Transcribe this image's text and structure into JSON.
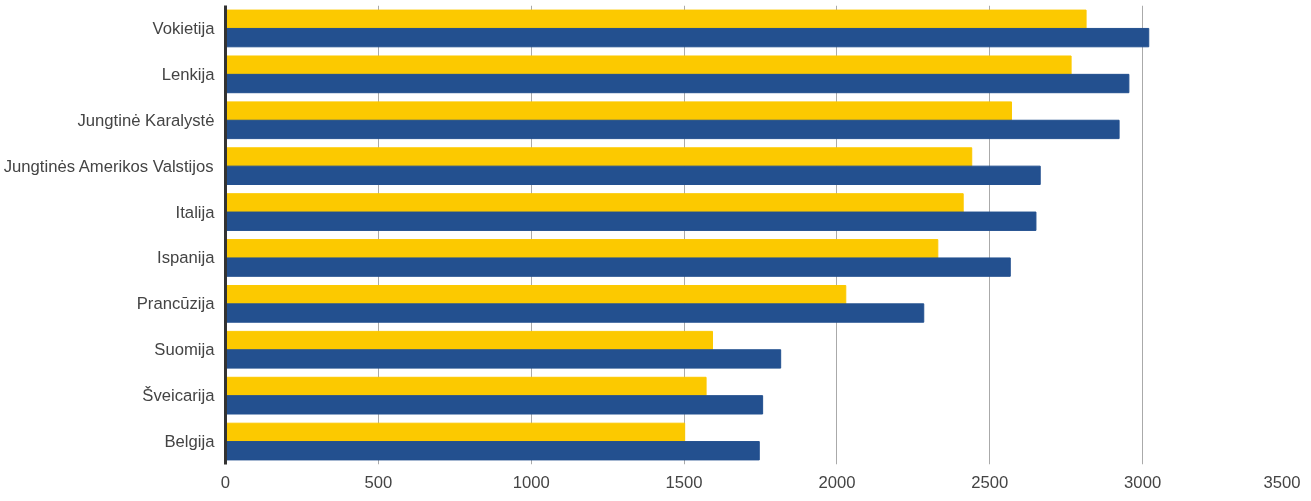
{
  "chart_data": {
    "type": "bar",
    "orientation": "horizontal",
    "categories": [
      "Vokietija",
      "Lenkija",
      "Jungtinė Karalystė",
      "Jungtinės Amerikos Valstijos",
      "Italija",
      "Ispanija",
      "Prancūzija",
      "Suomija",
      "Šveicarija",
      "Belgija"
    ],
    "series": [
      {
        "color": "#fcc900",
        "values": [
          2815,
          2766,
          2571,
          2441,
          2413,
          2330,
          2029,
          1593,
          1572,
          1502
        ]
      },
      {
        "color": "#23508f",
        "values": [
          3020,
          2955,
          2923,
          2665,
          2651,
          2567,
          2284,
          1816,
          1757,
          1746
        ]
      }
    ],
    "xlim": [
      0,
      3500
    ],
    "xticks": [
      0,
      500,
      1000,
      1500,
      2000,
      2500,
      3000,
      3500
    ],
    "grid": "x"
  }
}
